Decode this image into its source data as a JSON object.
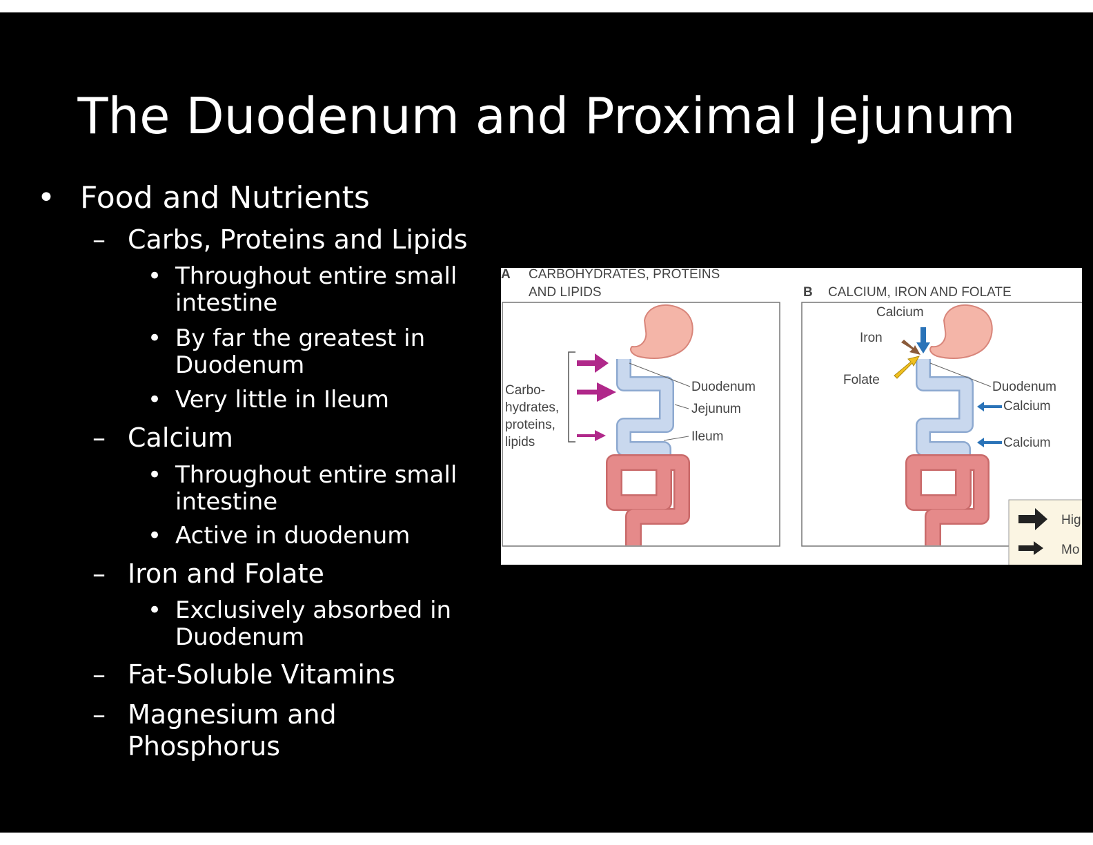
{
  "slide": {
    "title": "The Duodenum and Proximal Jejunum",
    "bullet_char": "•",
    "dash_char": "–",
    "level1": "Food and Nutrients",
    "items": [
      {
        "heading": "Carbs, Proteins and Lipids",
        "points": [
          {
            "line1": "Throughout entire small",
            "line2": "intestine"
          },
          {
            "line1": "By far the greatest in",
            "line2": "Duodenum"
          },
          {
            "line1": "Very little in Ileum"
          }
        ]
      },
      {
        "heading": "Calcium",
        "points": [
          {
            "line1": "Throughout entire small",
            "line2": "intestine"
          },
          {
            "line1": "Active in duodenum"
          }
        ]
      },
      {
        "heading": "Iron and Folate",
        "points": [
          {
            "line1": "Exclusively absorbed in",
            "line2": "Duodenum"
          }
        ]
      },
      {
        "heading": "Fat-Soluble Vitamins"
      },
      {
        "heading_line1": "Magnesium and",
        "heading_line2": "Phosphorus"
      }
    ]
  },
  "figure": {
    "panel_a": {
      "letter": "A",
      "title_line1": "CARBOHYDRATES, PROTEINS",
      "title_line2": "AND LIPIDS",
      "nutrient_lines": [
        "Carbo-",
        "hydrates,",
        "proteins,",
        "lipids"
      ],
      "labels": {
        "duodenum": "Duodenum",
        "jejunum": "Jejunum",
        "ileum": "Ileum"
      }
    },
    "panel_b": {
      "letter": "B",
      "title": "CALCIUM, IRON AND FOLATE",
      "labels": {
        "calcium_top": "Calcium",
        "iron": "Iron",
        "folate": "Folate",
        "duodenum": "Duodenum",
        "calcium_mid": "Calcium",
        "calcium_low": "Calcium"
      }
    },
    "legend": {
      "high": "Hig",
      "moderate": "Mo"
    },
    "colors": {
      "stomach": "#f4b5a8",
      "intestine": "#c9d8ee",
      "colon": "#e58a8a",
      "magenta": "#b0288a",
      "blue_arrow": "#2a73b8",
      "brown_arrow": "#8a5a3a",
      "yellow_arrow": "#f0c020",
      "legend_bg": "#fbf5e3"
    }
  }
}
